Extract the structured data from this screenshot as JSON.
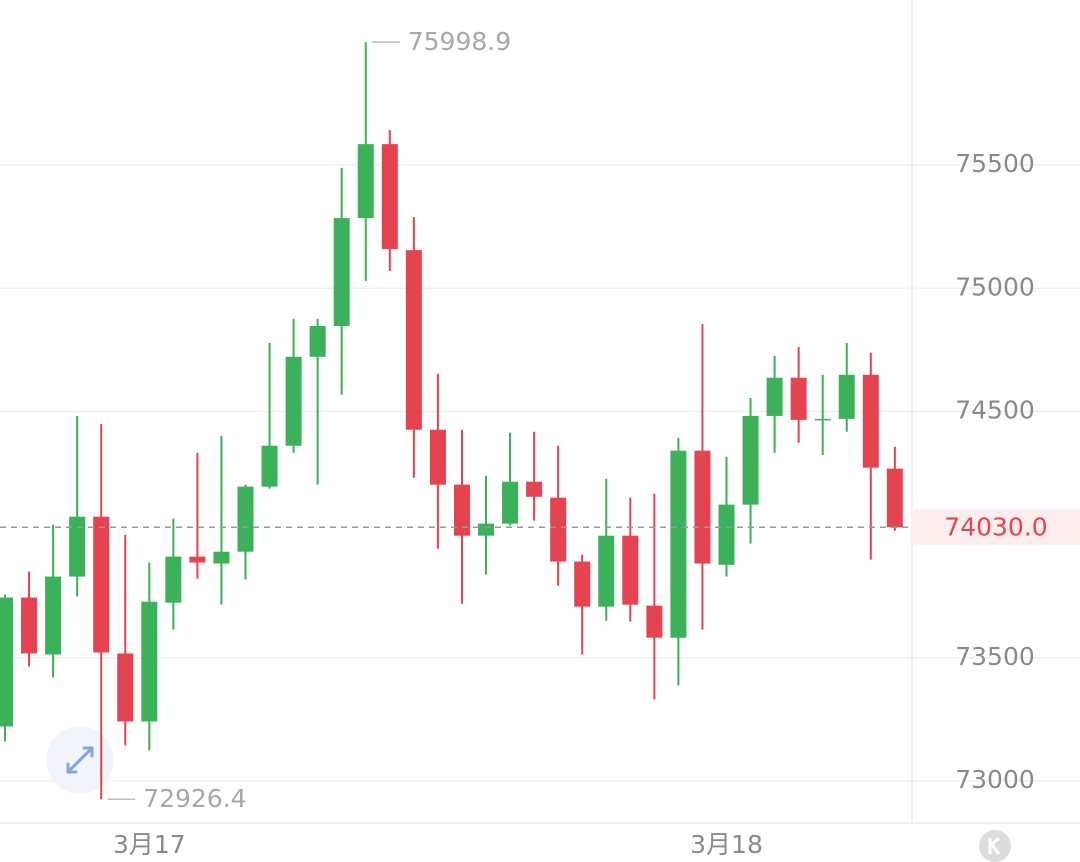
{
  "chart_data": {
    "type": "candlestick",
    "categories": [
      null,
      null,
      null,
      null,
      null,
      null,
      "3月17",
      null,
      null,
      null,
      null,
      null,
      null,
      null,
      null,
      null,
      null,
      null,
      null,
      null,
      null,
      null,
      null,
      null,
      null,
      null,
      null,
      null,
      null,
      null,
      "3月18",
      null,
      null,
      null,
      null,
      null,
      null,
      null
    ],
    "open": [
      73222,
      73745,
      73514,
      73830,
      74073,
      73518,
      73242,
      73724,
      73911,
      73883,
      73931,
      74195,
      74361,
      74722,
      74847,
      75285,
      75585,
      75155,
      74426,
      74203,
      73996,
      74045,
      74215,
      74150,
      73891,
      73708,
      73996,
      73712,
      73582,
      74341,
      73878,
      74122,
      74482,
      74637,
      74466,
      74470,
      74649,
      74268
    ],
    "high": [
      73757,
      73850,
      74041,
      74482,
      74450,
      74000,
      73887,
      74065,
      74332,
      74401,
      74203,
      74778,
      74876,
      74876,
      75488,
      75998.9,
      75642,
      75289,
      74653,
      74426,
      74239,
      74414,
      74418,
      74361,
      73919,
      74227,
      74150,
      74166,
      74393,
      74855,
      74316,
      74555,
      74726,
      74762,
      74649,
      74778,
      74738,
      74357
    ],
    "low": [
      73161,
      73465,
      73420,
      73749,
      72926.4,
      73145,
      73124,
      73615,
      73822,
      73716,
      73818,
      74187,
      74332,
      74203,
      74568,
      75030,
      75070,
      74231,
      73943,
      73720,
      73838,
      74037,
      74057,
      73793,
      73514,
      73651,
      73647,
      73331,
      73388,
      73615,
      73830,
      73964,
      74332,
      74373,
      74324,
      74418,
      73899,
      74016
    ],
    "close": [
      73745,
      73518,
      73830,
      74073,
      73522,
      73242,
      73728,
      73911,
      73887,
      73931,
      74195,
      74361,
      74722,
      74847,
      75285,
      75585,
      75159,
      74426,
      74203,
      73996,
      74045,
      74215,
      74154,
      73891,
      73708,
      73996,
      73716,
      73582,
      74341,
      73883,
      74122,
      74482,
      74637,
      74466,
      74470,
      74649,
      74272,
      74030
    ],
    "up_color": "#3bb15a",
    "down_color": "#e5434f",
    "last_price": {
      "value": 74030,
      "label": "74030.0"
    },
    "ylim": [
      72830,
      76170
    ],
    "yticks": [
      73000,
      73500,
      74500,
      75000,
      75500
    ],
    "grid": true
  }
}
